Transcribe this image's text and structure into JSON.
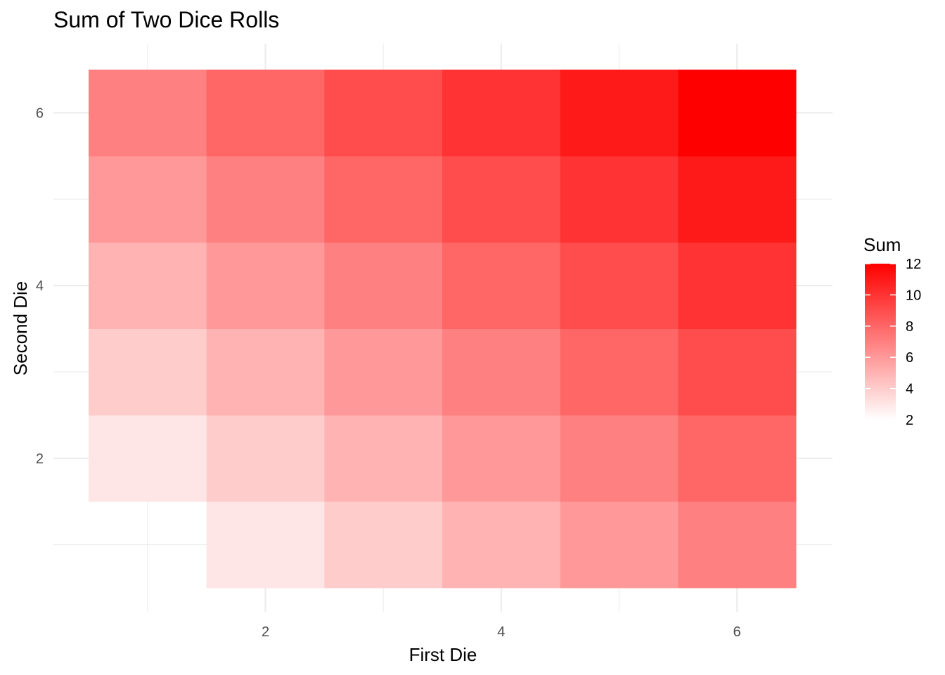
{
  "chart_data": {
    "type": "heatmap",
    "title": "Sum of Two Dice Rolls",
    "xlabel": "First Die",
    "ylabel": "Second Die",
    "x_ticks": [
      2,
      4,
      6
    ],
    "y_ticks": [
      2,
      4,
      6
    ],
    "xlim": [
      0.5,
      6.5
    ],
    "ylim": [
      0.5,
      6.5
    ],
    "grid": true,
    "legend": {
      "title": "Sum",
      "position": "right",
      "ticks": [
        2,
        4,
        6,
        8,
        10,
        12
      ],
      "range": [
        2,
        12
      ],
      "low_color": "#ffffff",
      "high_color": "#ff0000"
    },
    "cells": [
      {
        "x": 2,
        "y": 1,
        "value": 3
      },
      {
        "x": 3,
        "y": 1,
        "value": 4
      },
      {
        "x": 4,
        "y": 1,
        "value": 5
      },
      {
        "x": 5,
        "y": 1,
        "value": 6
      },
      {
        "x": 6,
        "y": 1,
        "value": 7
      },
      {
        "x": 1,
        "y": 2,
        "value": 3
      },
      {
        "x": 2,
        "y": 2,
        "value": 4
      },
      {
        "x": 3,
        "y": 2,
        "value": 5
      },
      {
        "x": 4,
        "y": 2,
        "value": 6
      },
      {
        "x": 5,
        "y": 2,
        "value": 7
      },
      {
        "x": 6,
        "y": 2,
        "value": 8
      },
      {
        "x": 1,
        "y": 3,
        "value": 4
      },
      {
        "x": 2,
        "y": 3,
        "value": 5
      },
      {
        "x": 3,
        "y": 3,
        "value": 6
      },
      {
        "x": 4,
        "y": 3,
        "value": 7
      },
      {
        "x": 5,
        "y": 3,
        "value": 8
      },
      {
        "x": 6,
        "y": 3,
        "value": 9
      },
      {
        "x": 1,
        "y": 4,
        "value": 5
      },
      {
        "x": 2,
        "y": 4,
        "value": 6
      },
      {
        "x": 3,
        "y": 4,
        "value": 7
      },
      {
        "x": 4,
        "y": 4,
        "value": 8
      },
      {
        "x": 5,
        "y": 4,
        "value": 9
      },
      {
        "x": 6,
        "y": 4,
        "value": 10
      },
      {
        "x": 1,
        "y": 5,
        "value": 6
      },
      {
        "x": 2,
        "y": 5,
        "value": 7
      },
      {
        "x": 3,
        "y": 5,
        "value": 8
      },
      {
        "x": 4,
        "y": 5,
        "value": 9
      },
      {
        "x": 5,
        "y": 5,
        "value": 10
      },
      {
        "x": 6,
        "y": 5,
        "value": 11
      },
      {
        "x": 1,
        "y": 6,
        "value": 7
      },
      {
        "x": 2,
        "y": 6,
        "value": 8
      },
      {
        "x": 3,
        "y": 6,
        "value": 9
      },
      {
        "x": 4,
        "y": 6,
        "value": 10
      },
      {
        "x": 5,
        "y": 6,
        "value": 11
      },
      {
        "x": 6,
        "y": 6,
        "value": 12
      }
    ]
  }
}
